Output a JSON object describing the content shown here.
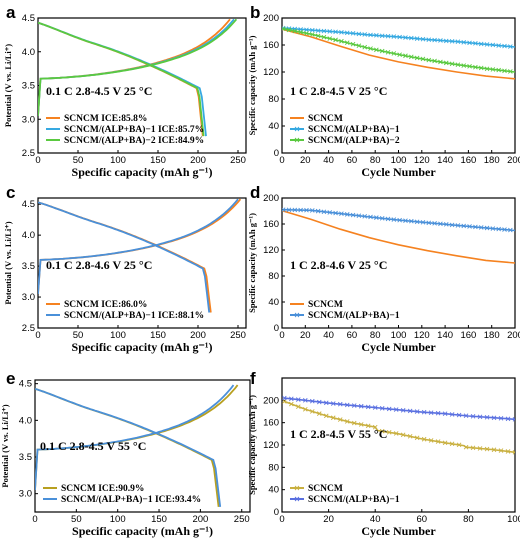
{
  "colors": {
    "orange": "#f58220",
    "blue": "#36a9e1",
    "green": "#5ac940",
    "olive": "#b8a020",
    "blue2": "#4a90d9",
    "gold": "#c9b040",
    "royal": "#5a70e0"
  },
  "chart_data": [
    {
      "panel": "a",
      "type": "line",
      "condition": "0.1 C 2.8-4.5 V  25 °C",
      "xlabel": "Specific capacity (mAh g⁻¹)",
      "ylabel": "Potential (V vs. Li/Li⁺)",
      "xlim": [
        0,
        260
      ],
      "ylim": [
        2.5,
        4.5
      ],
      "xticks": [
        "0",
        "50",
        "100",
        "150",
        "200",
        "250"
      ],
      "yticks": [
        "2.5",
        "3.0",
        "3.5",
        "4.0",
        "4.5"
      ],
      "legend_position": "bottom-left",
      "series": [
        {
          "name": "SCNCM ICE:85.8%",
          "color": "orange",
          "charge_cap": 240,
          "discharge_cap": 206
        },
        {
          "name": "SCNCM/(ALP+BA)−1 ICE:85.7%",
          "color": "blue",
          "charge_cap": 245,
          "discharge_cap": 210
        },
        {
          "name": "SCNCM/(ALP+BA)−2 ICE:84.9%",
          "color": "green",
          "charge_cap": 248,
          "discharge_cap": 207
        }
      ]
    },
    {
      "panel": "b",
      "type": "line",
      "condition": "1 C 2.8-4.5 V  25 °C",
      "xlabel": "Cycle Number",
      "ylabel": "Specific capacity (mAh g⁻¹)",
      "xlim": [
        0,
        200
      ],
      "ylim": [
        0,
        200
      ],
      "xticks": [
        "0",
        "20",
        "40",
        "60",
        "80",
        "100",
        "120",
        "140",
        "160",
        "180",
        "200"
      ],
      "yticks": [
        "0",
        "40",
        "80",
        "120",
        "160",
        "200"
      ],
      "legend_position": "bottom-left",
      "series": [
        {
          "name": "SCNCM",
          "color": "orange",
          "marker": "none",
          "x": [
            1,
            25,
            50,
            75,
            100,
            125,
            150,
            175,
            200
          ],
          "y": [
            183,
            172,
            158,
            145,
            135,
            127,
            120,
            114,
            110
          ]
        },
        {
          "name": "SCNCM/(ALP+BA)−1",
          "color": "blue",
          "marker": "x",
          "x": [
            1,
            25,
            50,
            75,
            100,
            125,
            150,
            175,
            200
          ],
          "y": [
            185,
            182,
            179,
            175,
            172,
            168,
            165,
            161,
            157
          ]
        },
        {
          "name": "SCNCM/(ALP+BA)−2",
          "color": "green",
          "marker": "+",
          "x": [
            1,
            25,
            50,
            75,
            100,
            125,
            150,
            175,
            200
          ],
          "y": [
            184,
            176,
            166,
            155,
            146,
            138,
            131,
            125,
            120
          ]
        }
      ]
    },
    {
      "panel": "c",
      "type": "line",
      "condition": "0.1 C 2.8-4.6 V  25 °C",
      "xlabel": "Specific capacity (mAh g⁻¹)",
      "ylabel": "Potential (V vs. Li/Li⁺)",
      "xlim": [
        0,
        260
      ],
      "ylim": [
        2.5,
        4.6
      ],
      "xticks": [
        "0",
        "50",
        "100",
        "150",
        "200",
        "250"
      ],
      "yticks": [
        "2.5",
        "3.0",
        "3.5",
        "4.0",
        "4.5"
      ],
      "legend_position": "bottom-left",
      "series": [
        {
          "name": "SCNCM ICE:86.0%",
          "color": "orange",
          "charge_cap": 253,
          "discharge_cap": 216
        },
        {
          "name": "SCNCM/(ALP+BA)−1 ICE:88.1%",
          "color": "blue2",
          "charge_cap": 250,
          "discharge_cap": 214
        }
      ]
    },
    {
      "panel": "d",
      "type": "line",
      "condition": "1 C 2.8-4.6 V  25 °C",
      "xlabel": "Cycle Number",
      "ylabel": "Specific capacity (mAh g⁻¹)",
      "xlim": [
        0,
        200
      ],
      "ylim": [
        0,
        200
      ],
      "xticks": [
        "0",
        "20",
        "40",
        "60",
        "80",
        "100",
        "120",
        "140",
        "160",
        "180",
        "200"
      ],
      "yticks": [
        "0",
        "40",
        "80",
        "120",
        "160",
        "200"
      ],
      "legend_position": "bottom-left",
      "series": [
        {
          "name": "SCNCM",
          "color": "orange",
          "marker": "none",
          "x": [
            1,
            25,
            50,
            75,
            100,
            125,
            150,
            175,
            200
          ],
          "y": [
            180,
            167,
            152,
            139,
            128,
            119,
            111,
            104,
            100
          ]
        },
        {
          "name": "SCNCM/(ALP+BA)−1",
          "color": "blue2",
          "marker": "x",
          "x": [
            1,
            25,
            50,
            75,
            100,
            125,
            150,
            175,
            200
          ],
          "y": [
            182,
            181,
            176,
            171,
            166,
            162,
            158,
            154,
            150
          ]
        }
      ]
    },
    {
      "panel": "e",
      "type": "line",
      "condition": "0.1 C 2.8-4.5 V  55 °C",
      "xlabel": "Specific capacity (mAh g⁻¹)",
      "ylabel": "Potential (V vs. Li/Li⁺)",
      "xlim": [
        0,
        260
      ],
      "ylim": [
        2.75,
        4.55
      ],
      "xticks": [
        "0",
        "50",
        "100",
        "150",
        "200",
        "250"
      ],
      "yticks": [
        "3.0",
        "3.5",
        "4.0",
        "4.5"
      ],
      "legend_position": "bottom-left",
      "series": [
        {
          "name": "SCNCM ICE:90.9%",
          "color": "olive",
          "charge_cap": 245,
          "discharge_cap": 222
        },
        {
          "name": "SCNCM/(ALP+BA)−1 ICE:93.4%",
          "color": "blue2",
          "charge_cap": 240,
          "discharge_cap": 224
        }
      ]
    },
    {
      "panel": "f",
      "type": "line",
      "condition": "1 C 2.8-4.5 V  55 °C",
      "xlabel": "Cycle Number",
      "ylabel": "Specific capacity (mAh g⁻¹)",
      "xlim": [
        0,
        100
      ],
      "ylim": [
        0,
        240
      ],
      "xticks": [
        "0",
        "20",
        "40",
        "60",
        "80",
        "100"
      ],
      "yticks": [
        "0",
        "40",
        "80",
        "120",
        "160",
        "200"
      ],
      "legend_position": "bottom-left",
      "series": [
        {
          "name": "SCNCM",
          "color": "gold",
          "marker": "x",
          "x": [
            1,
            10,
            20,
            30,
            40,
            41,
            50,
            60,
            70,
            78,
            79,
            90,
            100
          ],
          "y": [
            198,
            184,
            171,
            160,
            152,
            146,
            140,
            131,
            124,
            119,
            116,
            112,
            107
          ]
        },
        {
          "name": "SCNCM/(ALP+BA)−1",
          "color": "royal",
          "marker": "x",
          "x": [
            1,
            10,
            20,
            30,
            40,
            50,
            60,
            70,
            80,
            90,
            100
          ],
          "y": [
            204,
            200,
            195,
            191,
            187,
            183,
            179,
            176,
            172,
            169,
            166
          ]
        }
      ]
    }
  ]
}
